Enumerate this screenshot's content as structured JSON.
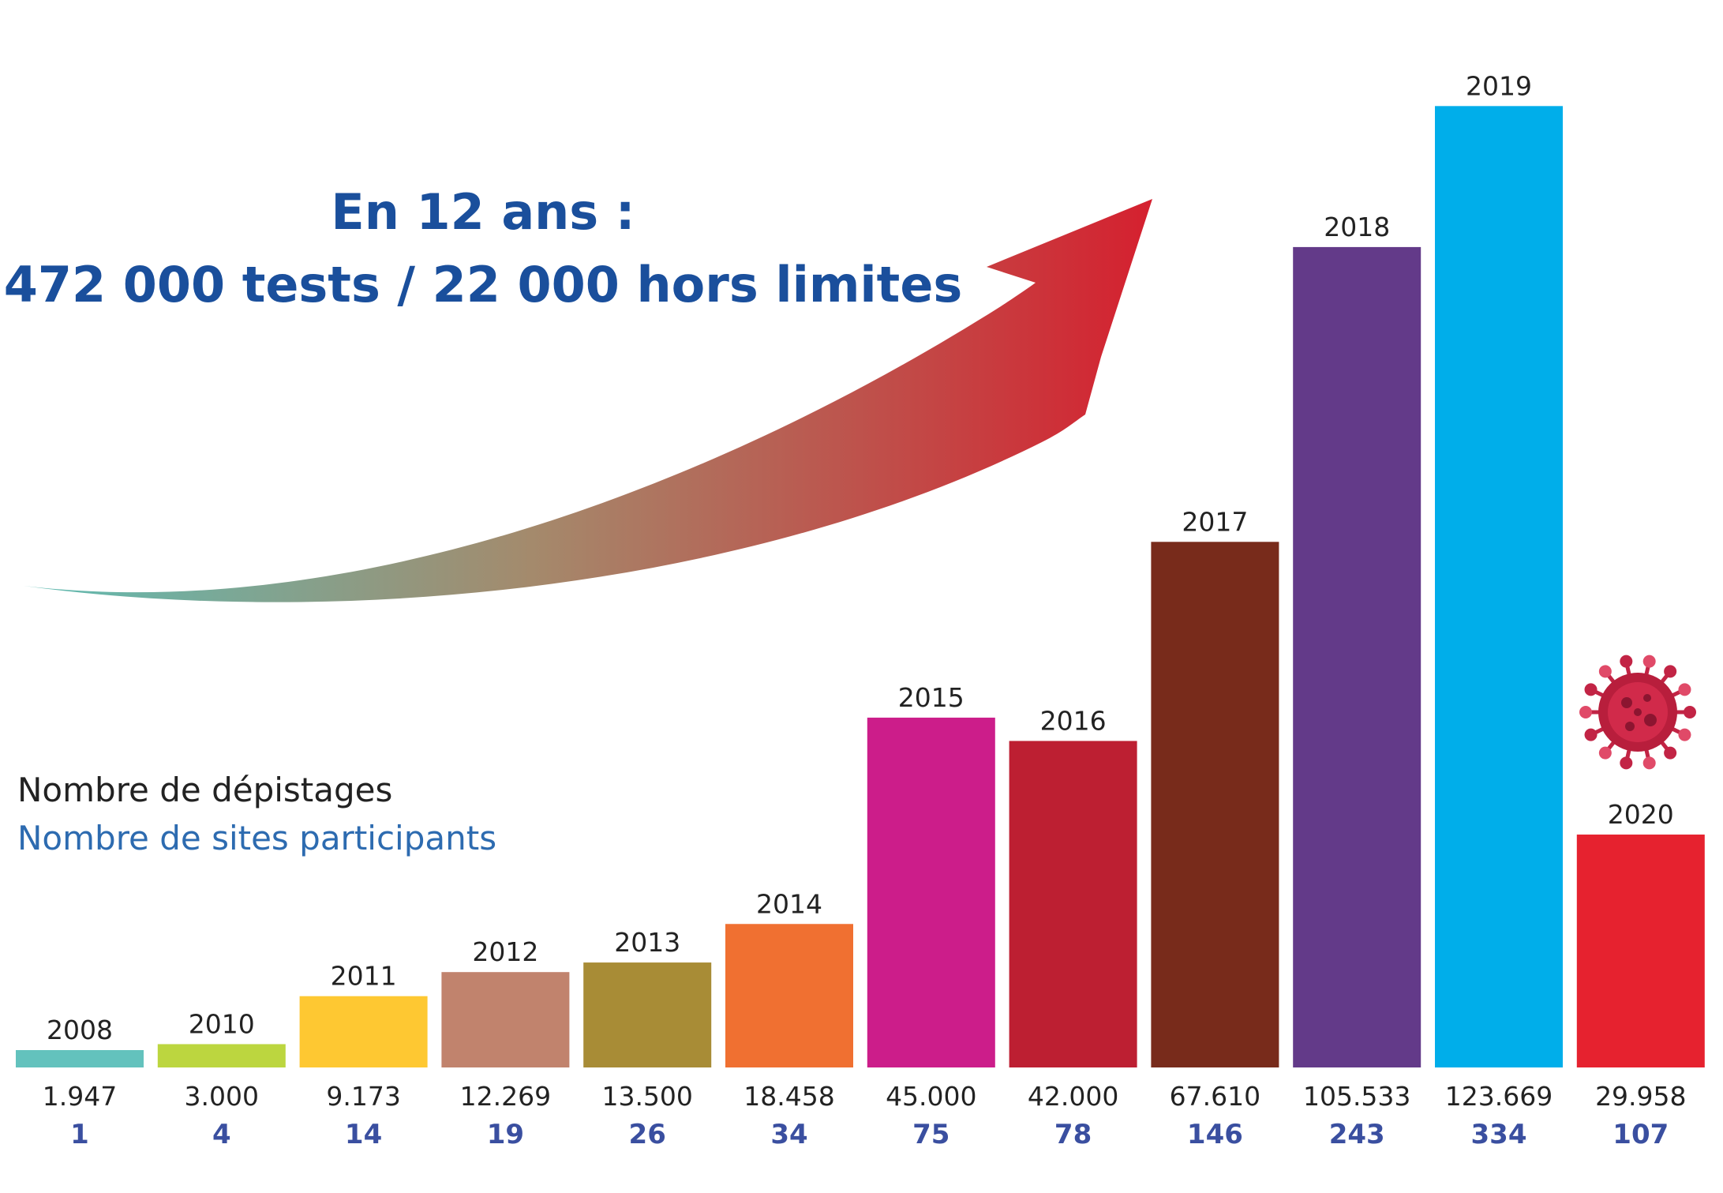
{
  "headline": {
    "line1": "En 12 ans :",
    "line2": "472 000 tests / 22 000 hors limites",
    "color": "#1a4f9c"
  },
  "legend": {
    "tests_label": "Nombre de dépistages",
    "tests_color": "#222222",
    "sites_label": "Nombre de sites participants",
    "sites_color": "#2d6bb0"
  },
  "icons": {
    "arrow": "growth-arrow-icon",
    "virus": "virus-icon"
  },
  "chart_data": {
    "type": "bar",
    "categories": [
      "2008",
      "2010",
      "2011",
      "2012",
      "2013",
      "2014",
      "2015",
      "2016",
      "2017",
      "2018",
      "2019",
      "2020"
    ],
    "series": [
      {
        "values": [
          1947,
          3000,
          9173,
          12269,
          13500,
          18458,
          45000,
          42000,
          67610,
          105533,
          123669,
          29958
        ],
        "value_labels": [
          "1.947",
          "3.000",
          "9.173",
          "12.269",
          "13.500",
          "18.458",
          "45.000",
          "42.000",
          "67.610",
          "105.533",
          "123.669",
          "29.958"
        ]
      },
      {
        "values": [
          1,
          4,
          14,
          19,
          26,
          34,
          75,
          78,
          146,
          243,
          334,
          107
        ]
      }
    ],
    "bar_colors": [
      "#63c2bd",
      "#bcd63f",
      "#fec832",
      "#c1836d",
      "#a88c36",
      "#f07031",
      "#cc1d8a",
      "#bd1f32",
      "#782b1b",
      "#633a89",
      "#00aeea",
      "#e6222f"
    ],
    "ylim": [
      0,
      130000
    ],
    "grid": false
  }
}
